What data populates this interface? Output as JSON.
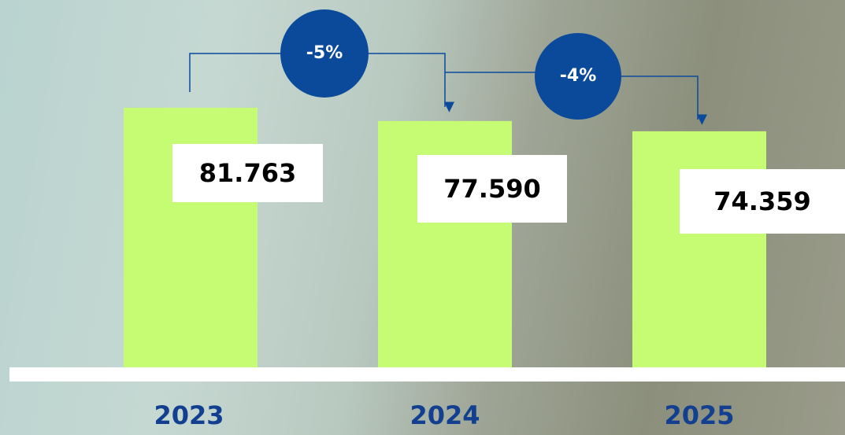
{
  "chart_data": {
    "type": "bar",
    "categories": [
      "2023",
      "2024",
      "2025"
    ],
    "values": [
      81763,
      77590,
      74359
    ],
    "value_labels": [
      "81.763",
      "77.590",
      "74.359"
    ],
    "color": "#c6fb74",
    "annotations": [
      "-5%",
      "-4%"
    ]
  }
}
